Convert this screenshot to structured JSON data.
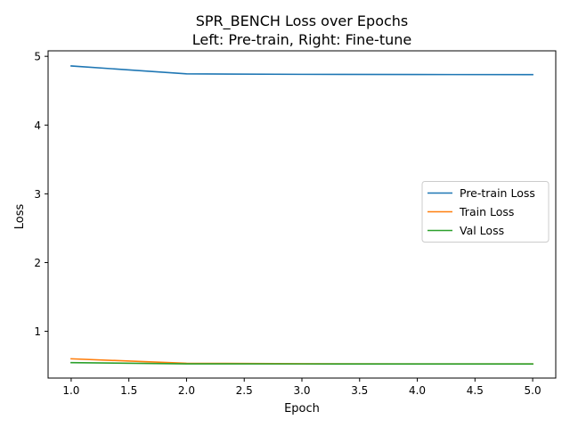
{
  "chart_data": {
    "type": "line",
    "title": "SPR_BENCH Loss over Epochs",
    "subtitle": "Left: Pre-train, Right: Fine-tune",
    "xlabel": "Epoch",
    "ylabel": "Loss",
    "xlim": [
      0.8,
      5.2
    ],
    "ylim": [
      0.32,
      5.08
    ],
    "xticks": [
      1.0,
      1.5,
      2.0,
      2.5,
      3.0,
      3.5,
      4.0,
      4.5,
      5.0
    ],
    "xtick_labels": [
      "1.0",
      "1.5",
      "2.0",
      "2.5",
      "3.0",
      "3.5",
      "4.0",
      "4.5",
      "5.0"
    ],
    "yticks": [
      1,
      2,
      3,
      4,
      5
    ],
    "ytick_labels": [
      "1",
      "2",
      "3",
      "4",
      "5"
    ],
    "grid": false,
    "legend_position": "center-right",
    "x": [
      1,
      2,
      3,
      4,
      5
    ],
    "series": [
      {
        "name": "Pre-train Loss",
        "color": "#1f77b4",
        "values": [
          4.86,
          4.745,
          4.738,
          4.735,
          4.734
        ]
      },
      {
        "name": "Train Loss",
        "color": "#ff7f0e",
        "values": [
          0.6,
          0.535,
          0.528,
          0.526,
          0.525
        ]
      },
      {
        "name": "Val Loss",
        "color": "#2ca02c",
        "values": [
          0.545,
          0.527,
          0.526,
          0.525,
          0.525
        ]
      }
    ]
  }
}
